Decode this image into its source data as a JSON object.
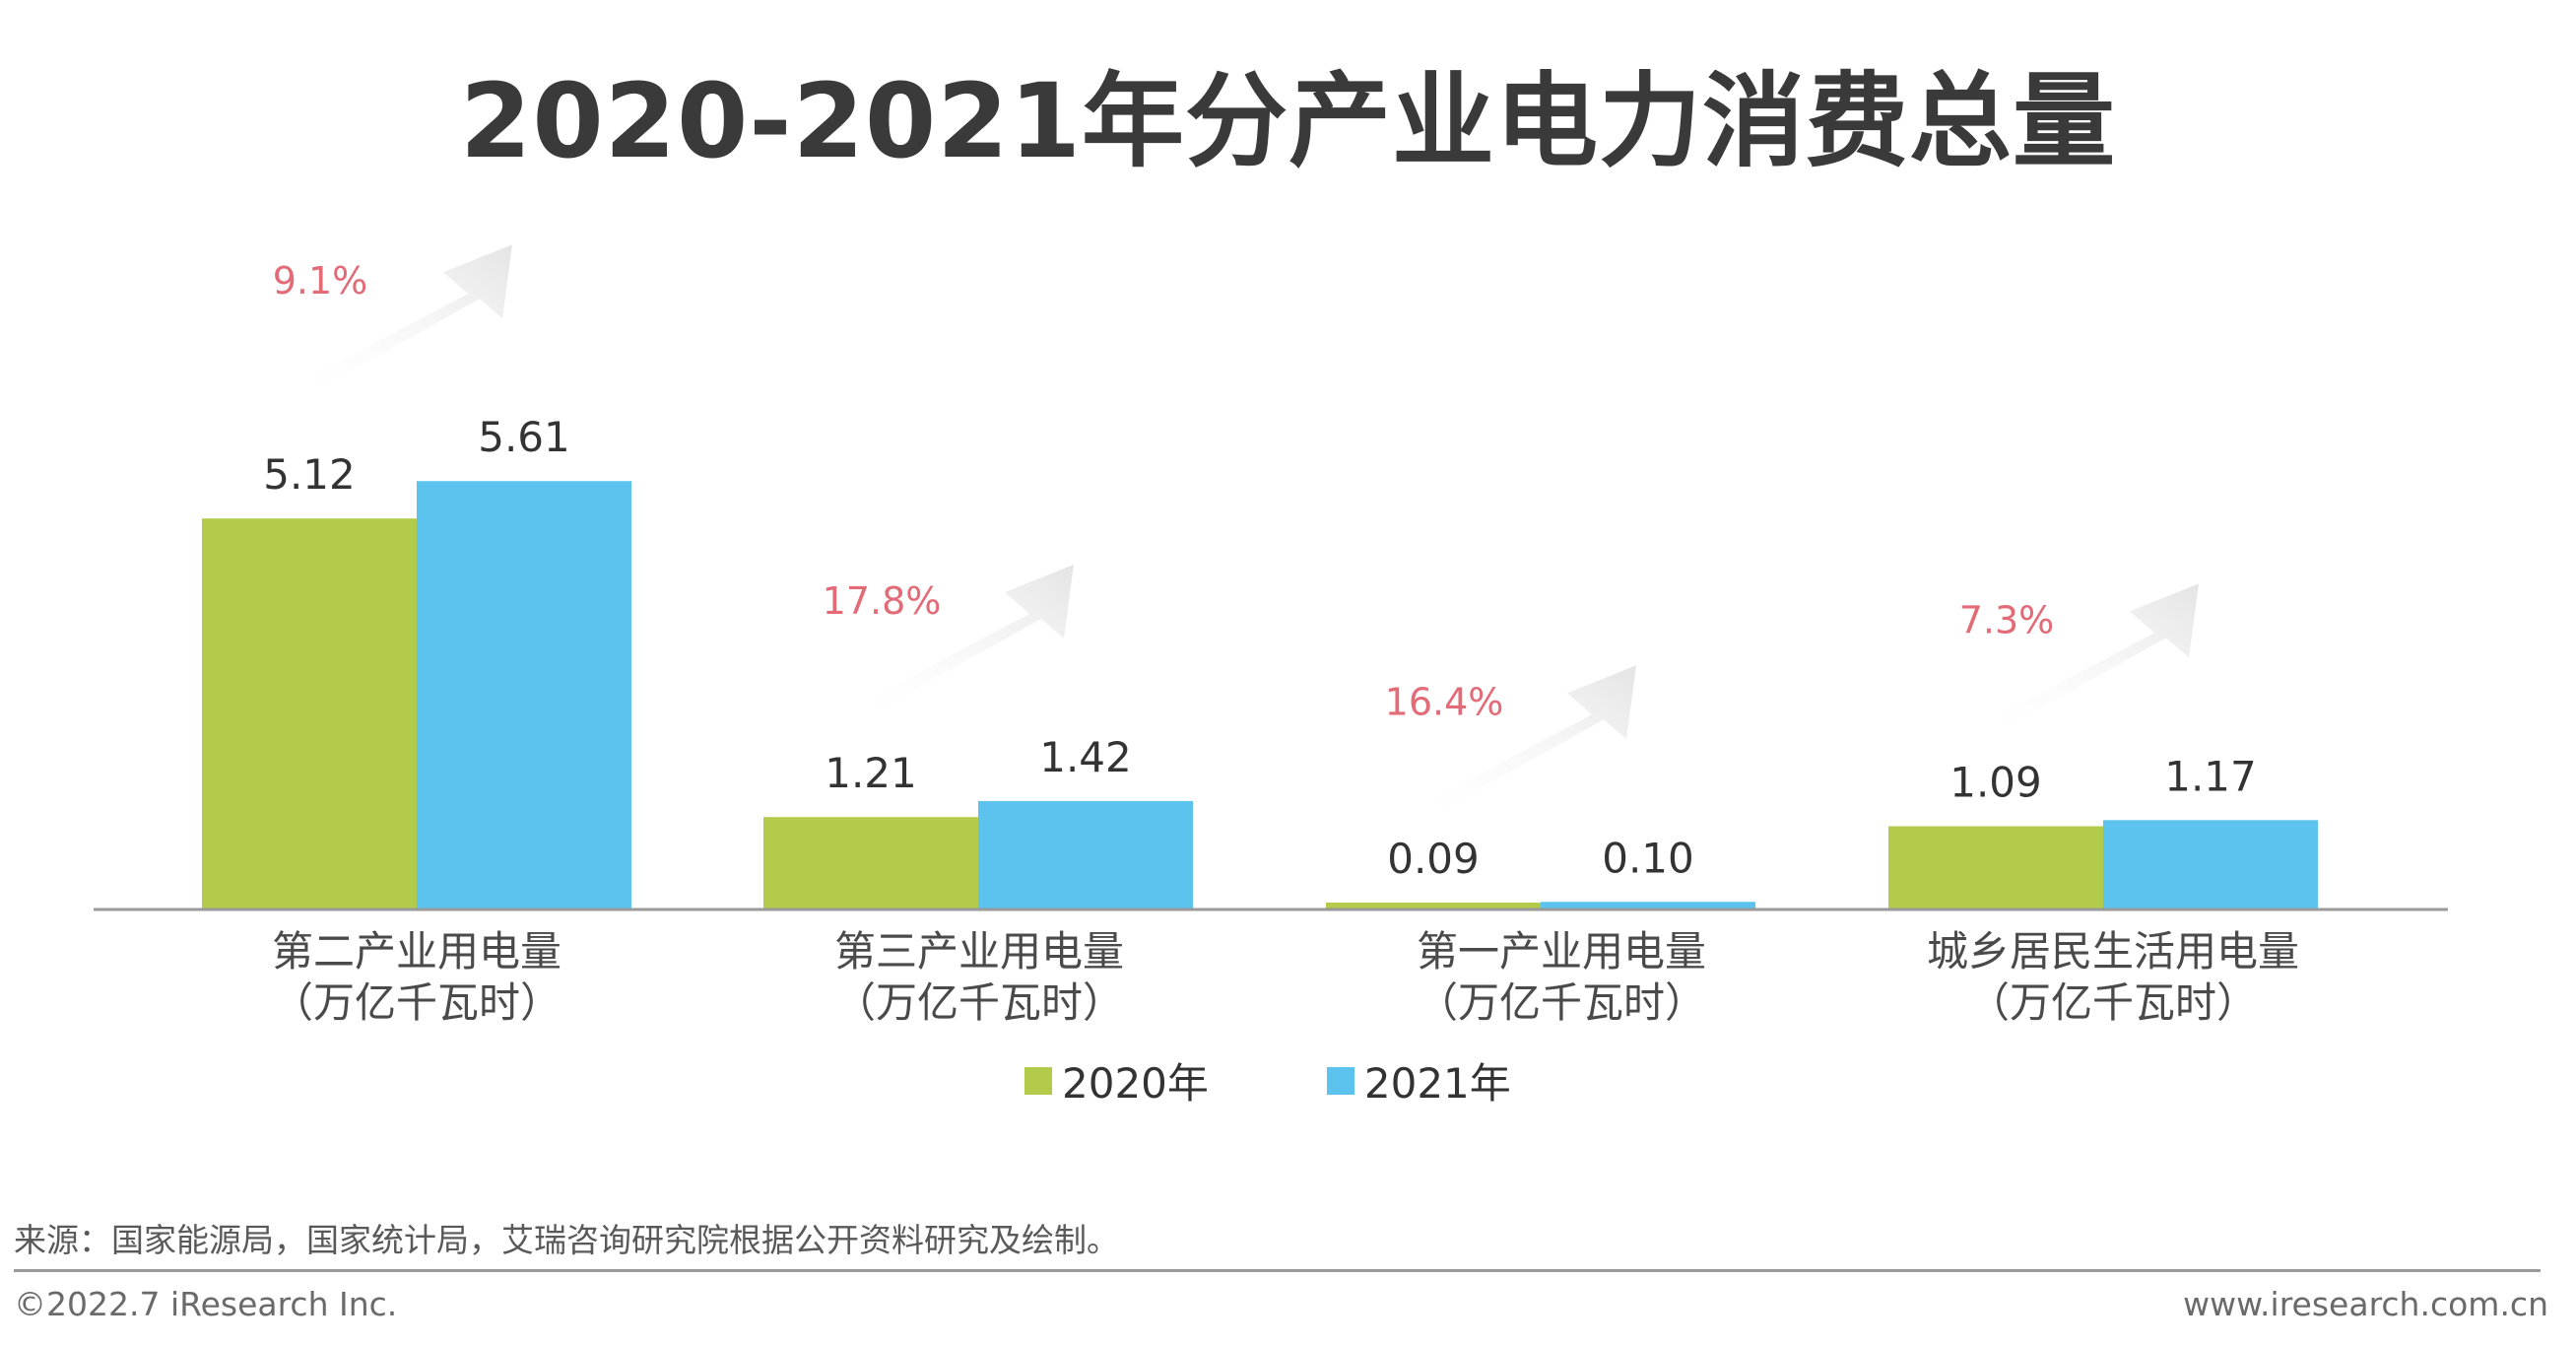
{
  "chart_data": {
    "type": "bar",
    "title": "2020-2021年分产业电力消费总量",
    "categories": [
      {
        "line1": "第二产业用电量",
        "line2": "（万亿千瓦时）"
      },
      {
        "line1": "第三产业用电量",
        "line2": "（万亿千瓦时）"
      },
      {
        "line1": "第一产业用电量",
        "line2": "（万亿千瓦时）"
      },
      {
        "line1": "城乡居民生活用电量",
        "line2": "（万亿千瓦时）"
      }
    ],
    "series": [
      {
        "name": "2020年",
        "color": "#b2cb4a",
        "values": [
          5.12,
          1.21,
          0.09,
          1.09
        ]
      },
      {
        "name": "2021年",
        "color": "#5bc3ed",
        "values": [
          5.61,
          1.42,
          0.1,
          1.17
        ]
      }
    ],
    "value_labels": [
      [
        "5.12",
        "1.21",
        "0.09",
        "1.09"
      ],
      [
        "5.61",
        "1.42",
        "0.10",
        "1.17"
      ]
    ],
    "growth_labels": [
      "9.1%",
      "17.8%",
      "16.4%",
      "7.3%"
    ],
    "growth_color": "#e26b77",
    "ylim": [
      0,
      6
    ],
    "legend_position": "bottom-center"
  },
  "source": "来源：国家能源局，国家统计局，艾瑞咨询研究院根据公开资料研究及绘制。",
  "copyright": "©2022.7 iResearch Inc.",
  "website": "www.iresearch.com.cn"
}
